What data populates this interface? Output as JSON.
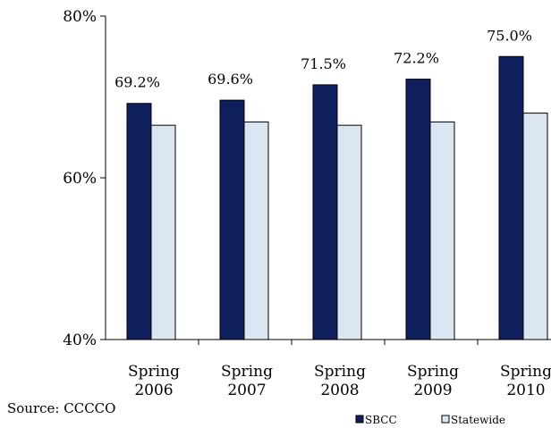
{
  "chart_data": {
    "type": "bar",
    "categories": [
      [
        "Spring",
        "2006"
      ],
      [
        "Spring",
        "2007"
      ],
      [
        "Spring",
        "2008"
      ],
      [
        "Spring",
        "2009"
      ],
      [
        "Spring",
        "2010"
      ]
    ],
    "series": [
      {
        "name": "SBCC",
        "values": [
          69.2,
          69.6,
          71.5,
          72.2,
          75.0
        ],
        "color": "#0d1f5c"
      },
      {
        "name": "Statewide",
        "values": [
          66.5,
          66.9,
          66.5,
          66.9,
          68.0
        ],
        "color": "#dce6f2"
      }
    ],
    "data_labels": [
      "69.2%",
      "69.6%",
      "71.5%",
      "72.2%",
      "75.0%"
    ],
    "y_ticks": [
      {
        "value": 40,
        "label": "40%"
      },
      {
        "value": 60,
        "label": "60%"
      },
      {
        "value": 80,
        "label": "80%"
      }
    ],
    "ylim": [
      40,
      80
    ],
    "grid": false,
    "legend_position": "bottom-right",
    "source": "Source: CCCCO"
  }
}
